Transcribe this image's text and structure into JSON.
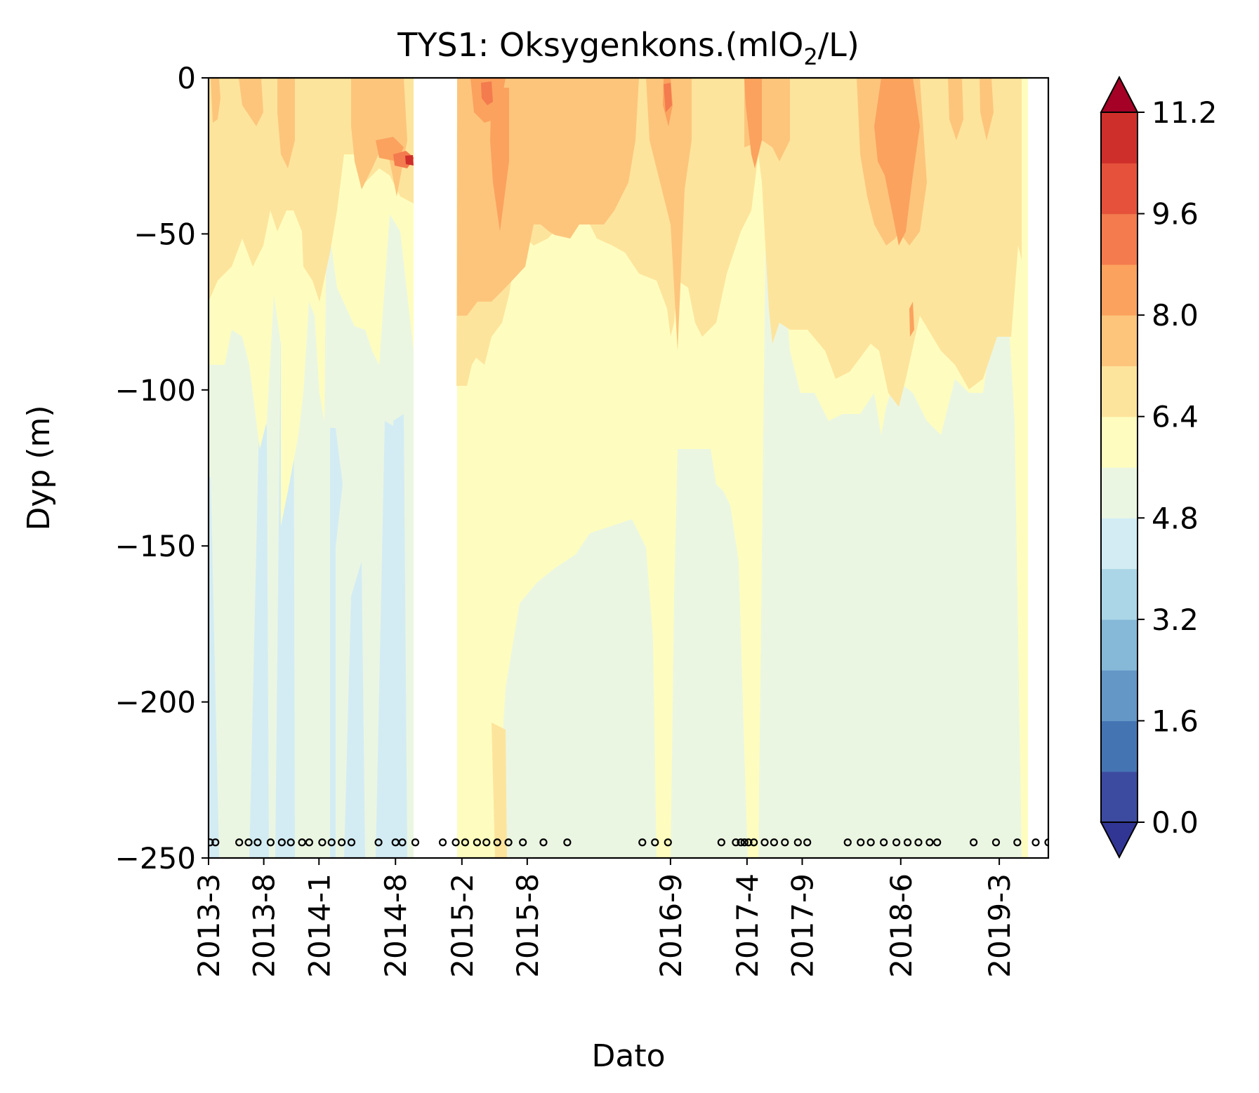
{
  "chart_data": {
    "type": "heatmap",
    "title": "TYS1: Oksygenkons.(mlO",
    "title_subscript": "2",
    "title_suffix": "/L)",
    "xlabel": "Dato",
    "ylabel": "Dyp (m)",
    "ylim": [
      -250,
      0
    ],
    "y_ticks": [
      {
        "value": 0,
        "label": "0"
      },
      {
        "value": -50,
        "label": "−50"
      },
      {
        "value": -100,
        "label": "−100"
      },
      {
        "value": -150,
        "label": "−150"
      },
      {
        "value": -200,
        "label": "−200"
      },
      {
        "value": -250,
        "label": "−250"
      }
    ],
    "xlim": [
      "2013-03-01",
      "2019-07-15"
    ],
    "x_ticks": [
      {
        "date": "2013-03-01",
        "label": "2013-3"
      },
      {
        "date": "2013-08-01",
        "label": "2013-8"
      },
      {
        "date": "2014-01-01",
        "label": "2014-1"
      },
      {
        "date": "2014-08-01",
        "label": "2014-8"
      },
      {
        "date": "2015-02-01",
        "label": "2015-2"
      },
      {
        "date": "2015-08-01",
        "label": "2015-8"
      },
      {
        "date": "2016-09-01",
        "label": "2016-9"
      },
      {
        "date": "2017-04-01",
        "label": "2017-4"
      },
      {
        "date": "2017-09-01",
        "label": "2017-9"
      },
      {
        "date": "2018-06-01",
        "label": "2018-6"
      },
      {
        "date": "2019-03-01",
        "label": "2019-3"
      }
    ],
    "sample_dates": [
      "2013-03-05",
      "2013-03-20",
      "2013-05-25",
      "2013-06-20",
      "2013-07-15",
      "2013-08-20",
      "2013-09-20",
      "2013-10-15",
      "2013-11-15",
      "2013-12-05",
      "2014-01-10",
      "2014-02-05",
      "2014-03-05",
      "2014-04-01",
      "2014-06-15",
      "2014-08-01",
      "2014-08-20",
      "2014-09-25",
      "2014-12-10",
      "2015-01-15",
      "2015-02-10",
      "2015-03-15",
      "2015-04-10",
      "2015-05-10",
      "2015-06-10",
      "2015-07-20",
      "2015-09-15",
      "2015-11-20",
      "2016-06-15",
      "2016-07-20",
      "2016-08-25",
      "2017-01-20",
      "2017-03-01",
      "2017-03-15",
      "2017-03-25",
      "2017-04-05",
      "2017-04-20",
      "2017-05-20",
      "2017-06-15",
      "2017-07-15",
      "2017-08-20",
      "2017-09-15",
      "2018-01-05",
      "2018-02-10",
      "2018-03-10",
      "2018-04-15",
      "2018-05-20",
      "2018-06-20",
      "2018-07-20",
      "2018-08-20",
      "2018-09-10",
      "2018-12-20",
      "2019-02-20",
      "2019-04-20",
      "2019-06-10",
      "2019-07-15"
    ],
    "gap_no_data": [
      "2014-09-25",
      "2015-01-15"
    ],
    "colorbar": {
      "levels": [
        0.0,
        0.8,
        1.6,
        2.4,
        3.2,
        4.0,
        4.8,
        5.6,
        6.4,
        7.2,
        8.0,
        8.8,
        9.6,
        10.4,
        11.2
      ],
      "tick_labels": [
        "0.0",
        "1.6",
        "3.2",
        "4.8",
        "6.4",
        "8.0",
        "9.6",
        "11.2"
      ],
      "extend": "both",
      "colors": [
        "#3c4ba0",
        "#4574b3",
        "#6496c6",
        "#86b8d8",
        "#abd6e7",
        "#d3ecf4",
        "#ebf6e2",
        "#fefdbf",
        "#fde49c",
        "#fdc57c",
        "#fba25e",
        "#f37b4e",
        "#e5513b",
        "#cf2f2b"
      ],
      "under_color": "#313695",
      "over_color": "#a50026"
    },
    "zone_colors": {
      "c_blue": "#d3ecf4",
      "c_green": "#ebf6e2",
      "c_yellow": "#fefdbf",
      "c_peach": "#fde49c",
      "c_orange": "#fdc57c",
      "c_dark_orange": "#fba25e",
      "c_red": "#f37b4e",
      "c_deep_red": "#cf2f2b"
    }
  }
}
